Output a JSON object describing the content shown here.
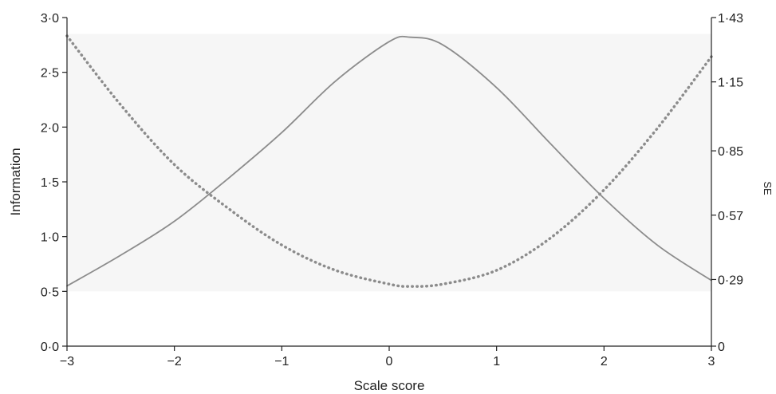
{
  "chart_data": {
    "type": "line",
    "title": "",
    "xlabel": "Scale score",
    "ylabel": "Information",
    "y2label": "SE",
    "xlim": [
      -3,
      3
    ],
    "ylim": [
      0,
      3.0
    ],
    "y2lim": [
      0,
      1.43
    ],
    "x_ticks": [
      "−3",
      "−2",
      "−1",
      "0",
      "1",
      "2",
      "3"
    ],
    "y_ticks": [
      "0·0",
      "0·5",
      "1·0",
      "1·5",
      "2·0",
      "2·5",
      "3·0"
    ],
    "y2_ticks": [
      "0",
      "0·29",
      "0·57",
      "0·85",
      "1·15",
      "1·43"
    ],
    "y2_tick_values": [
      0,
      0.29,
      0.57,
      0.85,
      1.15,
      1.43
    ],
    "grid": false,
    "shaded_band": [
      0.5,
      2.85
    ],
    "colors": {
      "shading": "#f6f6f6",
      "information": "#8c8c8c",
      "se": "#8c8c8c",
      "axes": "#222222"
    },
    "series": [
      {
        "axis": "left",
        "style": "solid",
        "x": [
          -3,
          -2.5,
          -2,
          -1.5,
          -1,
          -0.5,
          0,
          0.2,
          0.5,
          1,
          1.5,
          2,
          2.5,
          3
        ],
        "values": [
          0.55,
          0.83,
          1.14,
          1.53,
          1.95,
          2.42,
          2.78,
          2.82,
          2.75,
          2.36,
          1.85,
          1.35,
          0.92,
          0.6
        ]
      },
      {
        "axis": "right",
        "style": "dotted",
        "x": [
          -3,
          -2.5,
          -2,
          -1.5,
          -1,
          -0.5,
          0,
          0.2,
          0.5,
          1,
          1.5,
          2,
          2.5,
          3
        ],
        "values": [
          1.35,
          1.05,
          0.79,
          0.6,
          0.44,
          0.33,
          0.27,
          0.26,
          0.27,
          0.33,
          0.47,
          0.68,
          0.95,
          1.26
        ]
      }
    ]
  }
}
